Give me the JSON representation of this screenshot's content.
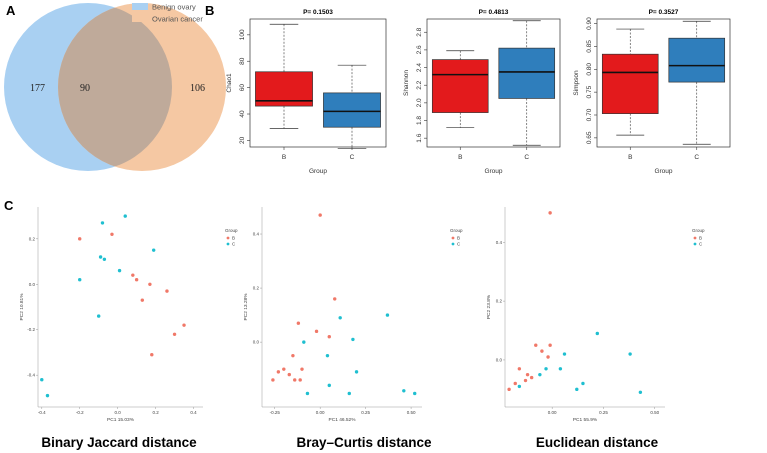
{
  "panels": {
    "a": "A",
    "b": "B",
    "c": "C"
  },
  "venn": {
    "legend": [
      {
        "label": "Benign ovary",
        "color": "#a9d0f2"
      },
      {
        "label": "Ovarian cancer",
        "color": "#f5c8a3"
      }
    ],
    "counts": {
      "left_only": "177",
      "overlap": "90",
      "right_only": "106"
    },
    "colors": {
      "left": "#a9d0f2",
      "right": "#f5c8a3",
      "overlap": "#bfaa9a"
    }
  },
  "colors": {
    "group_b_box": "#e31a1c",
    "group_c_box": "#2f7ebc",
    "group_b_point": "#f07868",
    "group_c_point": "#1fbfd0"
  },
  "chart_data": [
    {
      "type": "box",
      "title": "P= 0.1503",
      "ylabel": "Chao1",
      "xlabel": "Group",
      "ylim": [
        15,
        112
      ],
      "yticks": [
        20,
        40,
        60,
        80,
        100
      ],
      "categories": [
        "B",
        "C"
      ],
      "boxes": [
        {
          "group": "B",
          "min": 29,
          "q1": 46,
          "median": 50,
          "q3": 72,
          "max": 108
        },
        {
          "group": "C",
          "min": 14,
          "q1": 30,
          "median": 42,
          "q3": 56,
          "max": 77
        }
      ]
    },
    {
      "type": "box",
      "title": "P= 0.4813",
      "ylabel": "Shannon",
      "xlabel": "Group",
      "ylim": [
        1.5,
        2.95
      ],
      "yticks": [
        1.6,
        1.8,
        2.0,
        2.2,
        2.4,
        2.6,
        2.8
      ],
      "categories": [
        "B",
        "C"
      ],
      "boxes": [
        {
          "group": "B",
          "min": 1.72,
          "q1": 1.89,
          "median": 2.32,
          "q3": 2.49,
          "max": 2.59
        },
        {
          "group": "C",
          "min": 1.52,
          "q1": 2.05,
          "median": 2.35,
          "q3": 2.62,
          "max": 2.93
        }
      ]
    },
    {
      "type": "box",
      "title": "P= 0.3527",
      "ylabel": "Simpson",
      "xlabel": "Group",
      "ylim": [
        0.63,
        0.91
      ],
      "yticks": [
        0.65,
        0.7,
        0.75,
        0.8,
        0.85,
        0.9
      ],
      "categories": [
        "B",
        "C"
      ],
      "boxes": [
        {
          "group": "B",
          "min": 0.656,
          "q1": 0.703,
          "median": 0.793,
          "q3": 0.833,
          "max": 0.888
        },
        {
          "group": "C",
          "min": 0.636,
          "q1": 0.772,
          "median": 0.808,
          "q3": 0.868,
          "max": 0.905
        }
      ]
    },
    {
      "type": "scatter",
      "caption": "Binary Jaccard distance",
      "xlabel": "PC1 15.03%",
      "ylabel": "PC2 10.81%",
      "xlim": [
        -0.42,
        0.45
      ],
      "ylim": [
        -0.54,
        0.34
      ],
      "xticks": [
        -0.4,
        -0.2,
        0.0,
        0.2,
        0.4
      ],
      "yticks": [
        -0.4,
        -0.2,
        0.0,
        0.2
      ],
      "legend": {
        "title": "Group",
        "entries": [
          "B",
          "C"
        ]
      },
      "series": [
        {
          "name": "B",
          "points": [
            [
              -0.2,
              0.2
            ],
            [
              -0.03,
              0.22
            ],
            [
              0.08,
              0.04
            ],
            [
              0.1,
              0.02
            ],
            [
              0.17,
              0.0
            ],
            [
              0.26,
              -0.03
            ],
            [
              0.13,
              -0.07
            ],
            [
              0.35,
              -0.18
            ],
            [
              0.3,
              -0.22
            ],
            [
              0.18,
              -0.31
            ]
          ]
        },
        {
          "name": "C",
          "points": [
            [
              -0.08,
              0.27
            ],
            [
              0.04,
              0.3
            ],
            [
              0.19,
              0.15
            ],
            [
              -0.09,
              0.12
            ],
            [
              -0.07,
              0.11
            ],
            [
              -0.2,
              0.02
            ],
            [
              0.01,
              0.06
            ],
            [
              -0.1,
              -0.14
            ],
            [
              -0.4,
              -0.42
            ],
            [
              -0.37,
              -0.49
            ]
          ]
        }
      ]
    },
    {
      "type": "scatter",
      "caption": "Bray–Curtis distance",
      "xlabel": "PC1 46.52%",
      "ylabel": "PC2 13.28%",
      "xlim": [
        -0.32,
        0.56
      ],
      "ylim": [
        -0.24,
        0.5
      ],
      "xticks": [
        -0.25,
        0.0,
        0.25,
        0.5
      ],
      "yticks": [
        0.0,
        0.2,
        0.4
      ],
      "legend": {
        "title": "Group",
        "entries": [
          "B",
          "C"
        ]
      },
      "series": [
        {
          "name": "B",
          "points": [
            [
              0.0,
              0.47
            ],
            [
              0.08,
              0.16
            ],
            [
              -0.12,
              0.07
            ],
            [
              -0.02,
              0.04
            ],
            [
              0.05,
              0.02
            ],
            [
              -0.15,
              -0.05
            ],
            [
              -0.1,
              -0.1
            ],
            [
              -0.2,
              -0.1
            ],
            [
              -0.17,
              -0.12
            ],
            [
              -0.23,
              -0.11
            ],
            [
              -0.26,
              -0.14
            ],
            [
              -0.11,
              -0.14
            ],
            [
              -0.14,
              -0.14
            ]
          ]
        },
        {
          "name": "C",
          "points": [
            [
              0.37,
              0.1
            ],
            [
              0.11,
              0.09
            ],
            [
              0.18,
              0.01
            ],
            [
              -0.09,
              0.0
            ],
            [
              0.04,
              -0.05
            ],
            [
              0.2,
              -0.11
            ],
            [
              0.05,
              -0.16
            ],
            [
              -0.07,
              -0.19
            ],
            [
              0.16,
              -0.19
            ],
            [
              0.46,
              -0.18
            ],
            [
              0.52,
              -0.19
            ]
          ]
        }
      ]
    },
    {
      "type": "scatter",
      "caption": "Euclidean distance",
      "xlabel": "PC1 55.9%",
      "ylabel": "PC2 23.8%",
      "xlim": [
        -0.23,
        0.55
      ],
      "ylim": [
        -0.16,
        0.52
      ],
      "xticks": [
        -0.25,
        0.0,
        0.25,
        0.5
      ],
      "yticks": [
        0.0,
        0.2,
        0.4
      ],
      "legend": {
        "title": "Group",
        "entries": [
          "B",
          "C"
        ]
      },
      "series": [
        {
          "name": "B",
          "points": [
            [
              -0.01,
              0.5
            ],
            [
              -0.08,
              0.05
            ],
            [
              -0.01,
              0.05
            ],
            [
              -0.05,
              0.03
            ],
            [
              -0.02,
              0.01
            ],
            [
              -0.16,
              -0.03
            ],
            [
              -0.12,
              -0.05
            ],
            [
              -0.13,
              -0.07
            ],
            [
              -0.1,
              -0.06
            ],
            [
              -0.18,
              -0.08
            ],
            [
              -0.21,
              -0.1
            ]
          ]
        },
        {
          "name": "C",
          "points": [
            [
              0.22,
              0.09
            ],
            [
              0.06,
              0.02
            ],
            [
              0.38,
              0.02
            ],
            [
              -0.03,
              -0.03
            ],
            [
              0.04,
              -0.03
            ],
            [
              -0.06,
              -0.05
            ],
            [
              0.15,
              -0.08
            ],
            [
              -0.16,
              -0.09
            ],
            [
              0.12,
              -0.1
            ],
            [
              0.43,
              -0.11
            ]
          ]
        }
      ]
    }
  ],
  "captions": {
    "jaccard": "Binary Jaccard distance",
    "bray": "Bray–Curtis distance",
    "euclid": "Euclidean distance"
  }
}
